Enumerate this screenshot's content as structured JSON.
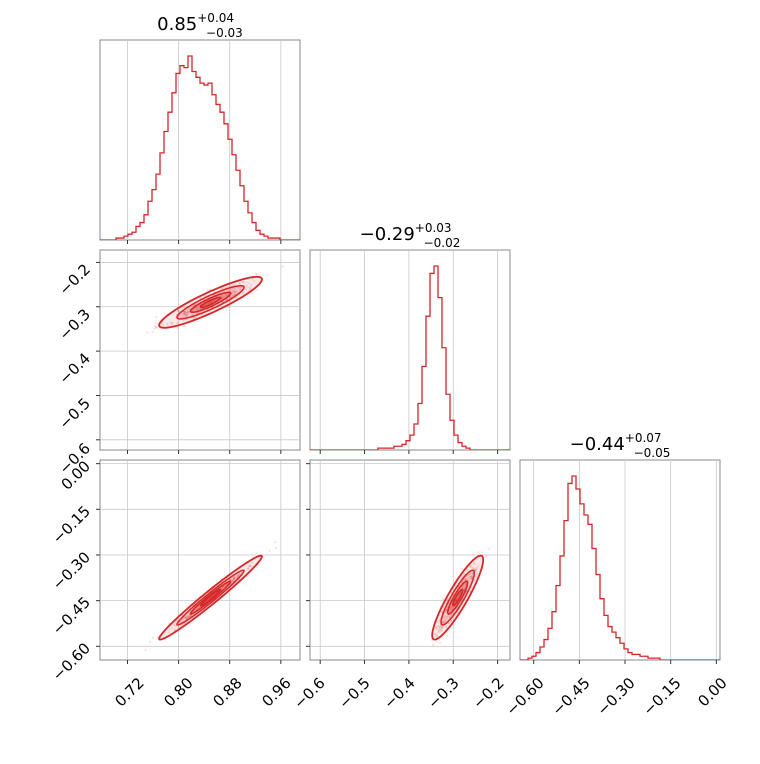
{
  "chart_data": {
    "type": "corner",
    "accent_color": "#d62728",
    "parameters": [
      {
        "median": "0.85",
        "plus": "+0.04",
        "minus": "−0.03"
      },
      {
        "median": "−0.29",
        "plus": "+0.03",
        "minus": "−0.02"
      },
      {
        "median": "−0.44",
        "plus": "+0.07",
        "minus": "−0.05"
      }
    ],
    "ranges": [
      [
        0.677,
        0.99
      ],
      [
        -0.623,
        -0.172
      ],
      [
        -0.645,
        0.012
      ]
    ],
    "ticks": [
      {
        "values": [
          0.72,
          0.8,
          0.88,
          0.96
        ],
        "labels": [
          "0.72",
          "0.80",
          "0.88",
          "0.96"
        ]
      },
      {
        "values": [
          -0.6,
          -0.5,
          -0.4,
          -0.3,
          -0.2
        ],
        "labels": [
          "−0.6",
          "−0.5",
          "−0.4",
          "−0.3",
          "−0.2"
        ]
      },
      {
        "values": [
          -0.6,
          -0.45,
          -0.3,
          -0.15,
          0.0
        ],
        "labels": [
          "−0.60",
          "−0.45",
          "−0.30",
          "−0.15",
          "0.00"
        ]
      }
    ],
    "histograms": [
      {
        "edges_start": 0.677,
        "bin_width": 0.00626,
        "counts": [
          0,
          0,
          0,
          0,
          1,
          1,
          2,
          3,
          4,
          7,
          9,
          13,
          20,
          26,
          34,
          45,
          56,
          66,
          76,
          86,
          90,
          89,
          95,
          87,
          84,
          81,
          80,
          81,
          75,
          70,
          66,
          60,
          52,
          44,
          36,
          28,
          20,
          14,
          9,
          5,
          3,
          2,
          1,
          1,
          1,
          0,
          0,
          0,
          0,
          0
        ]
      },
      {
        "edges_start": -0.623,
        "bin_width": 0.00902,
        "counts": [
          0,
          0,
          0,
          0,
          0,
          0,
          0,
          0,
          0,
          0,
          0,
          0,
          0,
          0,
          0,
          0,
          0,
          1,
          1,
          1,
          1,
          2,
          2,
          3,
          5,
          8,
          14,
          25,
          45,
          72,
          95,
          99,
          82,
          55,
          30,
          16,
          8,
          4,
          2,
          1,
          0,
          0,
          0,
          0,
          0,
          0,
          0,
          0,
          0,
          0
        ]
      },
      {
        "edges_start": -0.645,
        "bin_width": 0.01314,
        "counts": [
          0,
          0,
          1,
          2,
          4,
          7,
          11,
          17,
          26,
          40,
          56,
          75,
          95,
          99,
          92,
          84,
          78,
          73,
          60,
          46,
          33,
          24,
          18,
          15,
          12,
          9,
          6,
          4,
          3,
          3,
          2,
          2,
          1,
          1,
          1,
          0,
          0,
          0,
          0,
          0,
          0,
          0,
          0,
          0,
          0,
          0,
          0,
          0,
          0,
          0
        ]
      }
    ],
    "correlations": [
      {
        "x": 0,
        "y": 1,
        "mean": [
          0.85,
          -0.29
        ],
        "sd": [
          0.035,
          0.025
        ],
        "rho": 0.9
      },
      {
        "x": 0,
        "y": 2,
        "mean": [
          0.85,
          -0.44
        ],
        "sd": [
          0.035,
          0.06
        ],
        "rho": 0.98
      },
      {
        "x": 1,
        "y": 2,
        "mean": [
          -0.29,
          -0.44
        ],
        "sd": [
          0.025,
          0.06
        ],
        "rho": 0.9
      }
    ]
  }
}
